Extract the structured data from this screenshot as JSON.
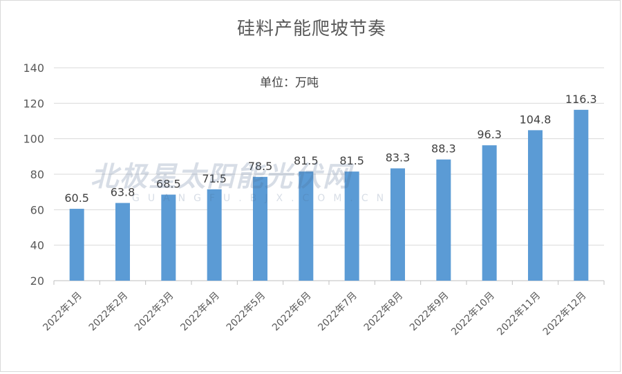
{
  "chart_data": {
    "type": "bar",
    "title": "硅料产能爬坡节奏",
    "unit_label": "单位：万吨",
    "categories": [
      "2022年1月",
      "2022年2月",
      "2022年3月",
      "2022年4月",
      "2022年5月",
      "2022年6月",
      "2022年7月",
      "2022年8月",
      "2022年9月",
      "2022年10月",
      "2022年11月",
      "2022年12月"
    ],
    "values": [
      60.5,
      63.8,
      68.5,
      71.5,
      78.5,
      81.5,
      81.5,
      83.3,
      88.3,
      96.3,
      104.8,
      116.3
    ],
    "value_labels": [
      "60.5",
      "63.8",
      "68.5",
      "71.5",
      "78.5",
      "81.5",
      "81.5",
      "83.3",
      "88.3",
      "96.3",
      "104.8",
      "116.3"
    ],
    "ylim": [
      20,
      140
    ],
    "yticks": [
      20,
      40,
      60,
      80,
      100,
      120,
      140
    ],
    "grid": true,
    "legend": "none",
    "bar_color": "#5b9bd5"
  },
  "watermark": {
    "text": "北极星太阳能光伏网",
    "subtext": "GUANGFU.BJX.COM.CN"
  }
}
